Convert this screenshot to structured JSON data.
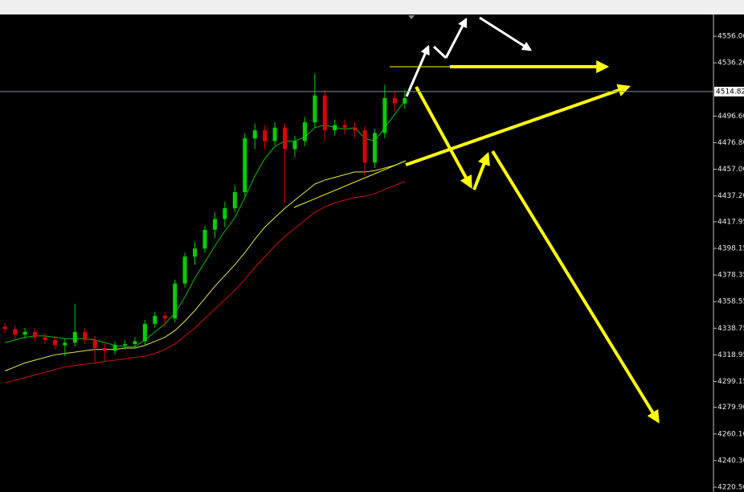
{
  "chart_data": {
    "type": "candlestick",
    "up_color": "#00d000",
    "down_color": "#e00000",
    "categories": [
      null,
      null,
      null,
      null,
      null,
      null,
      null,
      null,
      null,
      null,
      null,
      null,
      null,
      null,
      null,
      null,
      null,
      null,
      null,
      null,
      null,
      null,
      null,
      null,
      null,
      null,
      null,
      null,
      null,
      null,
      null,
      null,
      null,
      null,
      null,
      null,
      null,
      null,
      null,
      null,
      null
    ],
    "open": [
      4340,
      4338,
      4334,
      4336,
      4332,
      4330,
      4326,
      4328,
      4336,
      4330,
      4324,
      4322,
      4326,
      4327,
      4329,
      4342,
      4348,
      4346,
      4372,
      4392,
      4398,
      4412,
      4420,
      4428,
      4440,
      4480,
      4486,
      4478,
      4488,
      4472,
      4478,
      4492,
      4512,
      4486,
      4490,
      4488,
      4486,
      4462,
      4484,
      4510,
      4506
    ],
    "high": [
      4343,
      4341,
      4339,
      4339,
      4335,
      4333,
      4331,
      4357,
      4339,
      4333,
      4327,
      4329,
      4330,
      4332,
      4345,
      4351,
      4351,
      4375,
      4395,
      4403,
      4415,
      4425,
      4433,
      4445,
      4484,
      4491,
      4490,
      4492,
      4491,
      4482,
      4496,
      4528,
      4516,
      4494,
      4494,
      4492,
      4489,
      4487,
      4520,
      4515,
      4516
    ],
    "low": [
      4335,
      4331,
      4331,
      4329,
      4327,
      4323,
      4318,
      4325,
      4327,
      4312,
      4314,
      4319,
      4323,
      4324,
      4326,
      4339,
      4340,
      4343,
      4369,
      4386,
      4395,
      4406,
      4414,
      4425,
      4437,
      4472,
      4472,
      4475,
      4432,
      4466,
      4474,
      4488,
      4478,
      4482,
      4483,
      4480,
      4452,
      4458,
      4480,
      4500,
      4502
    ],
    "close": [
      4338,
      4334,
      4336,
      4332,
      4330,
      4326,
      4328,
      4336,
      4330,
      4324,
      4322,
      4326,
      4327,
      4329,
      4342,
      4348,
      4346,
      4372,
      4392,
      4398,
      4412,
      4420,
      4428,
      4440,
      4480,
      4486,
      4478,
      4488,
      4472,
      4478,
      4492,
      4512,
      4486,
      4490,
      4488,
      4486,
      4462,
      4484,
      4510,
      4506,
      4510
    ],
    "lines": [
      {
        "color": "#00c000",
        "values": [
          4328,
          4330,
          4332,
          4333,
          4333,
          4332,
          4331,
          4331,
          4331,
          4330,
          4328,
          4326,
          4325,
          4325,
          4330,
          4336,
          4342,
          4350,
          4362,
          4376,
          4388,
          4400,
          4411,
          4421,
          4436,
          4452,
          4465,
          4474,
          4478,
          4478,
          4481,
          4488,
          4490,
          4488,
          4487,
          4488,
          4480,
          4478,
          4488,
          4498,
          4508
        ]
      },
      {
        "color": "#e6e64a",
        "values": [
          4307,
          4310,
          4313,
          4315,
          4317,
          4319,
          4320,
          4321,
          4322,
          4323,
          4323,
          4323,
          4324,
          4324,
          4326,
          4329,
          4332,
          4337,
          4344,
          4352,
          4361,
          4370,
          4378,
          4386,
          4395,
          4405,
          4414,
          4421,
          4428,
          4434,
          4440,
          4446,
          4449,
          4451,
          4453,
          4455,
          4455,
          4456,
          4458,
          4460,
          4463
        ]
      },
      {
        "color": "#d01010",
        "values": [
          4298,
          4300,
          4302,
          4304,
          4306,
          4308,
          4310,
          4311,
          4312,
          4313,
          4314,
          4315,
          4316,
          4317,
          4318,
          4320,
          4323,
          4327,
          4333,
          4339,
          4346,
          4353,
          4360,
          4367,
          4375,
          4384,
          4392,
          4400,
          4407,
          4413,
          4419,
          4425,
          4429,
          4432,
          4434,
          4436,
          4437,
          4439,
          4442,
          4445,
          4448
        ]
      }
    ],
    "current_price": {
      "value": 4514.82,
      "label": "4514.82"
    },
    "ylim": [
      4216.9,
      4571.6
    ],
    "yticks": [
      {
        "value": 4556,
        "label": "4556.00"
      },
      {
        "value": 4536.2,
        "label": "4536.20"
      },
      {
        "value": 4496.6,
        "label": "4496.60"
      },
      {
        "value": 4476.8,
        "label": "4476.80"
      },
      {
        "value": 4457,
        "label": "4457.00"
      },
      {
        "value": 4437.2,
        "label": "4437.20"
      },
      {
        "value": 4417.95,
        "label": "4417.95"
      },
      {
        "value": 4398.15,
        "label": "4398.15"
      },
      {
        "value": 4378.35,
        "label": "4378.35"
      },
      {
        "value": 4358.55,
        "label": "4358.55"
      },
      {
        "value": 4338.75,
        "label": "4338.75"
      },
      {
        "value": 4318.95,
        "label": "4318.95"
      },
      {
        "value": 4299.15,
        "label": "4299.15"
      },
      {
        "value": 4279.9,
        "label": "4279.90"
      },
      {
        "value": 4260.1,
        "label": "4260.10"
      },
      {
        "value": 4240.3,
        "label": "4240.30"
      },
      {
        "value": 4220.5,
        "label": "4220.50"
      }
    ]
  }
}
